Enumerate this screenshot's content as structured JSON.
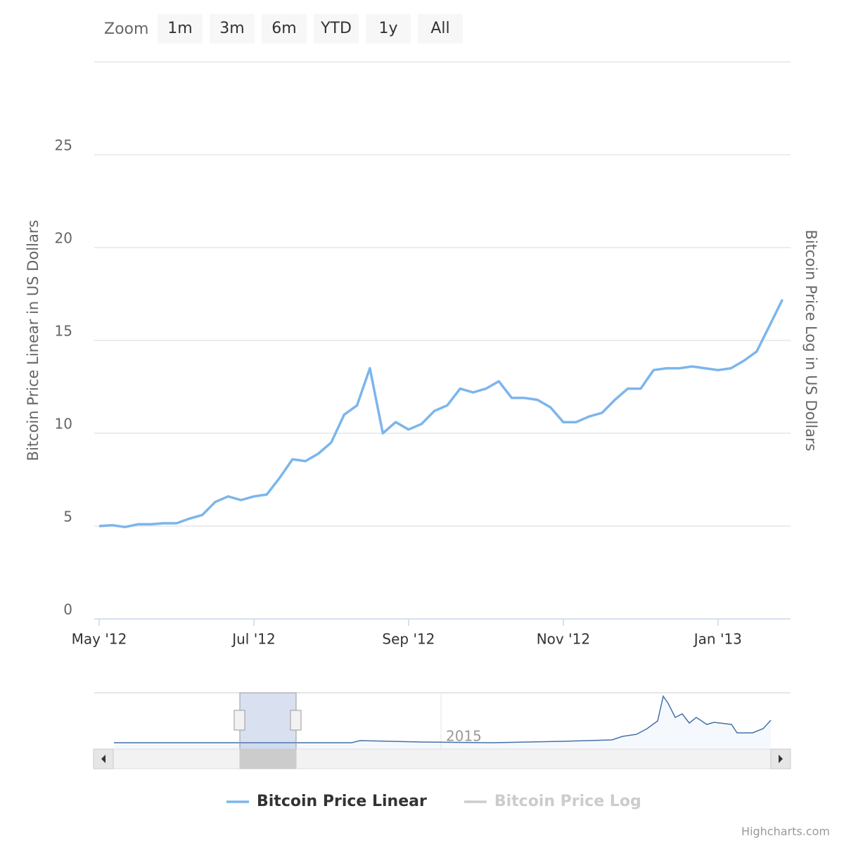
{
  "range_selector": {
    "label": "Zoom",
    "buttons": [
      "1m",
      "3m",
      "6m",
      "YTD",
      "1y",
      "All"
    ]
  },
  "chart_data": {
    "type": "line",
    "y_label": "Bitcoin Price Linear in US Dollars",
    "y2_label": "Bitcoin Price Log in US Dollars",
    "categories": [
      "May '12",
      null,
      null,
      null,
      null,
      null,
      null,
      null,
      null,
      null,
      null,
      null,
      "Jul '12",
      null,
      null,
      null,
      null,
      null,
      null,
      null,
      null,
      null,
      null,
      null,
      "Sep '12",
      null,
      null,
      null,
      null,
      null,
      null,
      null,
      null,
      null,
      null,
      null,
      "Nov '12",
      null,
      null,
      null,
      null,
      null,
      null,
      null,
      null,
      null,
      null,
      null,
      "Jan '13",
      null,
      null,
      null,
      null,
      null
    ],
    "series": [
      {
        "name": "Bitcoin Price Linear",
        "color": "#7cb5ec",
        "values": [
          5.0,
          5.05,
          4.95,
          5.1,
          5.1,
          5.15,
          5.15,
          5.4,
          5.6,
          6.3,
          6.6,
          6.4,
          6.6,
          6.7,
          7.6,
          8.6,
          8.5,
          8.9,
          9.5,
          11.0,
          11.5,
          13.5,
          10.0,
          10.6,
          10.2,
          10.5,
          11.2,
          11.5,
          12.4,
          12.2,
          12.4,
          12.8,
          11.9,
          11.9,
          11.8,
          11.4,
          10.6,
          10.6,
          10.9,
          11.1,
          11.8,
          12.4,
          12.4,
          13.4,
          13.5,
          13.5,
          13.6,
          13.5,
          13.4,
          13.5,
          13.9,
          14.4,
          15.8,
          17.2
        ]
      },
      {
        "name": "Bitcoin Price Log",
        "color": "#cccccc",
        "axis": "y2",
        "visible": false
      }
    ],
    "ylim": [
      0,
      30
    ],
    "yticks": [
      0,
      5,
      10,
      15,
      20,
      25
    ],
    "grid": true
  },
  "navigator": {
    "label": "2015"
  },
  "credits": "Highcharts.com"
}
